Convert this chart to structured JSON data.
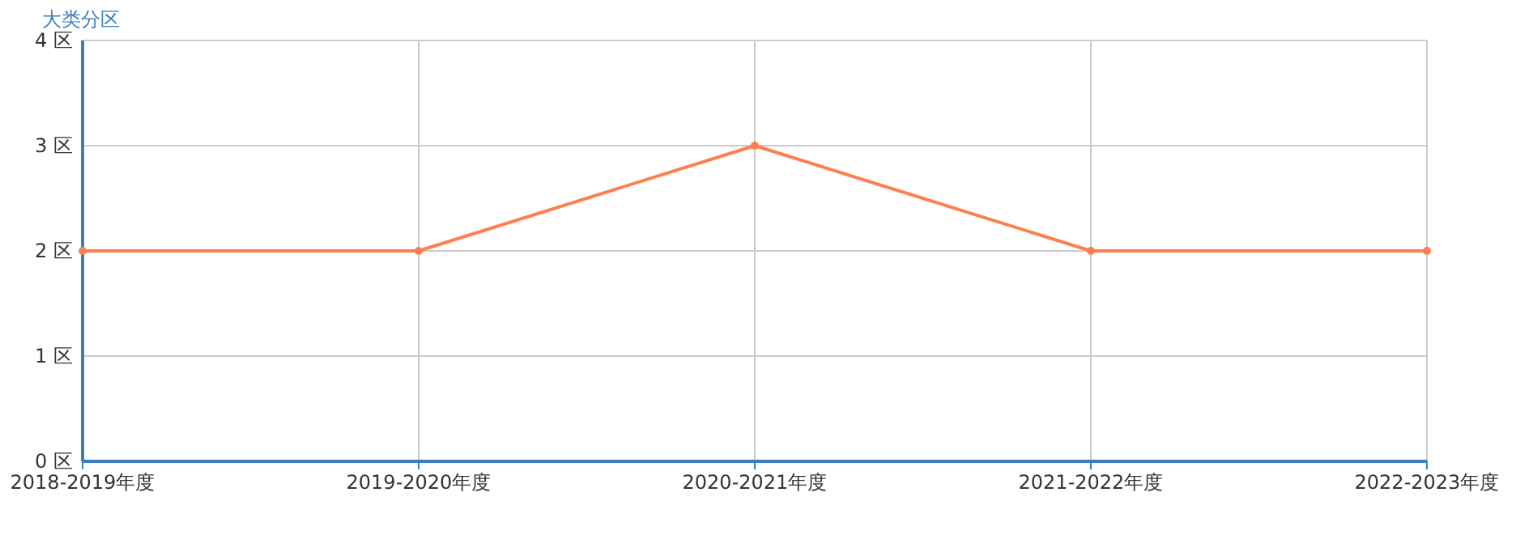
{
  "chart_data": {
    "type": "line",
    "ylabel": "大类分区",
    "categories": [
      "2018-2019年度",
      "2019-2020年度",
      "2020-2021年度",
      "2021-2022年度",
      "2022-2023年度"
    ],
    "series": [
      {
        "color": "#ff7f50",
        "values": [
          2,
          2,
          3,
          2,
          2
        ]
      }
    ],
    "ylim": [
      0,
      4
    ],
    "yticks": [
      {
        "value": 0,
        "label": "0 区"
      },
      {
        "value": 1,
        "label": "1 区"
      },
      {
        "value": 2,
        "label": "2 区"
      },
      {
        "value": 3,
        "label": "3 区"
      },
      {
        "value": 4,
        "label": "4 区"
      }
    ],
    "grid": true,
    "marker": "circle",
    "line_style": "solid"
  }
}
